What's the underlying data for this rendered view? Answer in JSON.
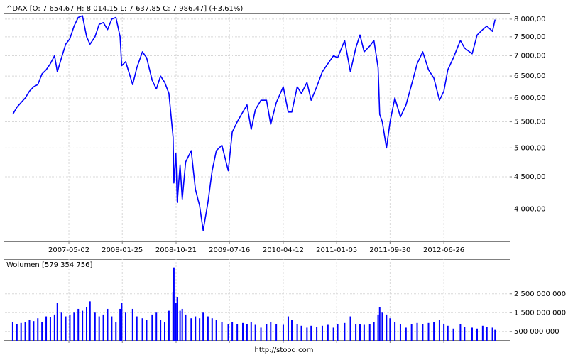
{
  "chart_data": [
    {
      "type": "line",
      "title": "^DAX [O: 7 654,67  H: 8 014,15  L: 7 637,85  C: 7 986,47] (+3,61%)",
      "x": [
        "2006-07-24",
        "2006-08-14",
        "2006-09-04",
        "2006-09-25",
        "2006-10-16",
        "2006-11-06",
        "2006-11-27",
        "2006-12-18",
        "2007-01-08",
        "2007-01-29",
        "2007-02-19",
        "2007-03-05",
        "2007-03-26",
        "2007-04-16",
        "2007-05-07",
        "2007-05-28",
        "2007-06-18",
        "2007-07-09",
        "2007-07-30",
        "2007-08-16",
        "2007-09-10",
        "2007-10-01",
        "2007-10-22",
        "2007-11-12",
        "2007-12-03",
        "2007-12-24",
        "2008-01-14",
        "2008-01-22",
        "2008-02-11",
        "2008-03-17",
        "2008-04-07",
        "2008-05-05",
        "2008-05-26",
        "2008-06-23",
        "2008-07-14",
        "2008-08-04",
        "2008-08-25",
        "2008-09-15",
        "2008-10-06",
        "2008-10-10",
        "2008-10-20",
        "2008-10-27",
        "2008-11-10",
        "2008-11-21",
        "2008-12-08",
        "2009-01-05",
        "2009-01-26",
        "2009-02-16",
        "2009-03-06",
        "2009-03-30",
        "2009-04-20",
        "2009-05-11",
        "2009-06-08",
        "2009-07-10",
        "2009-07-30",
        "2009-08-24",
        "2009-09-21",
        "2009-10-12",
        "2009-11-02",
        "2009-11-23",
        "2009-12-21",
        "2010-01-18",
        "2010-02-08",
        "2010-03-08",
        "2010-04-12",
        "2010-05-07",
        "2010-05-25",
        "2010-06-21",
        "2010-07-12",
        "2010-08-09",
        "2010-08-30",
        "2010-09-27",
        "2010-10-25",
        "2010-11-22",
        "2010-12-20",
        "2011-01-10",
        "2011-02-14",
        "2011-03-15",
        "2011-04-11",
        "2011-05-02",
        "2011-05-23",
        "2011-06-20",
        "2011-07-11",
        "2011-08-01",
        "2011-08-09",
        "2011-08-22",
        "2011-09-12",
        "2011-09-30",
        "2011-10-24",
        "2011-11-21",
        "2011-12-19",
        "2012-01-16",
        "2012-02-13",
        "2012-03-12",
        "2012-04-10",
        "2012-05-07",
        "2012-06-04",
        "2012-06-26",
        "2012-07-16",
        "2012-08-13",
        "2012-09-17",
        "2012-10-08",
        "2012-11-15",
        "2012-12-10",
        "2013-01-07",
        "2013-01-28",
        "2013-02-25",
        "2013-03-10"
      ],
      "series": [
        {
          "color": "#0000ff",
          "values": [
            5650,
            5800,
            5900,
            6000,
            6150,
            6250,
            6300,
            6550,
            6650,
            6800,
            7000,
            6600,
            6950,
            7300,
            7450,
            7800,
            8050,
            8100,
            7500,
            7300,
            7500,
            7850,
            7900,
            7700,
            8000,
            8050,
            7500,
            6750,
            6850,
            6300,
            6700,
            7100,
            6950,
            6400,
            6200,
            6500,
            6350,
            6100,
            5200,
            4400,
            4900,
            4100,
            4700,
            4150,
            4750,
            4950,
            4300,
            4050,
            3700,
            4100,
            4600,
            4950,
            5050,
            4600,
            5300,
            5500,
            5700,
            5850,
            5350,
            5750,
            5950,
            5950,
            5450,
            5900,
            6250,
            5700,
            5700,
            6250,
            6100,
            6350,
            5950,
            6250,
            6600,
            6800,
            7000,
            6950,
            7400,
            6600,
            7200,
            7550,
            7100,
            7250,
            7400,
            6700,
            5650,
            5500,
            5000,
            5500,
            6000,
            5600,
            5850,
            6300,
            6800,
            7100,
            6650,
            6450,
            5950,
            6150,
            6650,
            6950,
            7400,
            7200,
            7050,
            7550,
            7700,
            7800,
            7650,
            7986.47
          ]
        }
      ],
      "xlim": [
        "2006-06-08",
        "2013-05-23"
      ],
      "xticks": [
        "2007-05-02",
        "2008-01-25",
        "2008-10-21",
        "2009-07-16",
        "2010-04-12",
        "2011-01-05",
        "2011-09-30",
        "2012-06-26"
      ],
      "yscale": "log",
      "ylim": [
        3555,
        8145
      ],
      "yticks": [
        {
          "value": 4000,
          "label": "4 000,00"
        },
        {
          "value": 4500,
          "label": "4 500,00"
        },
        {
          "value": 5000,
          "label": "5 000,00"
        },
        {
          "value": 5500,
          "label": "5 500,00"
        },
        {
          "value": 6000,
          "label": "6 000,00"
        },
        {
          "value": 6500,
          "label": "6 500,00"
        },
        {
          "value": 7000,
          "label": "7 000,00"
        },
        {
          "value": 7500,
          "label": "7 500,00"
        },
        {
          "value": 8000,
          "label": "8 000,00"
        }
      ],
      "grid": true
    },
    {
      "type": "bar",
      "title": "Wolumen [579 354 756]",
      "color": "#0000ff",
      "x": [
        "2006-07-24",
        "2006-08-14",
        "2006-09-04",
        "2006-09-25",
        "2006-10-16",
        "2006-11-06",
        "2006-11-27",
        "2006-12-18",
        "2007-01-08",
        "2007-01-29",
        "2007-02-19",
        "2007-03-05",
        "2007-03-26",
        "2007-04-16",
        "2007-05-07",
        "2007-05-28",
        "2007-06-18",
        "2007-07-09",
        "2007-07-30",
        "2007-08-16",
        "2007-09-10",
        "2007-10-01",
        "2007-10-22",
        "2007-11-12",
        "2007-12-03",
        "2007-12-24",
        "2008-01-14",
        "2008-01-22",
        "2008-02-11",
        "2008-03-17",
        "2008-04-07",
        "2008-05-05",
        "2008-05-26",
        "2008-06-23",
        "2008-07-14",
        "2008-08-04",
        "2008-08-25",
        "2008-09-15",
        "2008-10-06",
        "2008-10-10",
        "2008-10-20",
        "2008-10-27",
        "2008-11-10",
        "2008-11-21",
        "2008-12-08",
        "2009-01-05",
        "2009-01-26",
        "2009-02-16",
        "2009-03-06",
        "2009-03-30",
        "2009-04-20",
        "2009-05-11",
        "2009-06-08",
        "2009-07-10",
        "2009-07-30",
        "2009-08-24",
        "2009-09-21",
        "2009-10-12",
        "2009-11-02",
        "2009-11-23",
        "2009-12-21",
        "2010-01-18",
        "2010-02-08",
        "2010-03-08",
        "2010-04-12",
        "2010-05-07",
        "2010-05-25",
        "2010-06-21",
        "2010-07-12",
        "2010-08-09",
        "2010-08-30",
        "2010-09-27",
        "2010-10-25",
        "2010-11-22",
        "2010-12-20",
        "2011-01-10",
        "2011-02-14",
        "2011-03-15",
        "2011-04-11",
        "2011-05-02",
        "2011-05-23",
        "2011-06-20",
        "2011-07-11",
        "2011-08-01",
        "2011-08-09",
        "2011-08-22",
        "2011-09-12",
        "2011-09-30",
        "2011-10-24",
        "2011-11-21",
        "2011-12-19",
        "2012-01-16",
        "2012-02-13",
        "2012-03-12",
        "2012-04-10",
        "2012-05-07",
        "2012-06-04",
        "2012-06-26",
        "2012-07-16",
        "2012-08-13",
        "2012-09-17",
        "2012-10-08",
        "2012-11-15",
        "2012-12-10",
        "2013-01-07",
        "2013-01-28",
        "2013-02-25",
        "2013-03-10"
      ],
      "values": [
        1000000000,
        900000000,
        950000000,
        1000000000,
        1100000000,
        1050000000,
        1200000000,
        1000000000,
        1300000000,
        1250000000,
        1400000000,
        2000000000,
        1500000000,
        1300000000,
        1400000000,
        1500000000,
        1700000000,
        1600000000,
        1800000000,
        2100000000,
        1500000000,
        1300000000,
        1400000000,
        1700000000,
        1300000000,
        1000000000,
        1700000000,
        2000000000,
        1500000000,
        1700000000,
        1300000000,
        1200000000,
        1100000000,
        1400000000,
        1500000000,
        1100000000,
        1000000000,
        1600000000,
        2600000000,
        3900000000,
        2000000000,
        2300000000,
        1600000000,
        1700000000,
        1400000000,
        1200000000,
        1300000000,
        1200000000,
        1500000000,
        1300000000,
        1200000000,
        1100000000,
        1000000000,
        900000000,
        1000000000,
        900000000,
        950000000,
        900000000,
        1000000000,
        850000000,
        700000000,
        900000000,
        1000000000,
        900000000,
        850000000,
        1300000000,
        1100000000,
        900000000,
        800000000,
        700000000,
        800000000,
        750000000,
        800000000,
        850000000,
        700000000,
        900000000,
        950000000,
        1300000000,
        900000000,
        900000000,
        850000000,
        900000000,
        1000000000,
        1400000000,
        1800000000,
        1500000000,
        1400000000,
        1200000000,
        1000000000,
        900000000,
        700000000,
        900000000,
        950000000,
        900000000,
        950000000,
        1000000000,
        1100000000,
        900000000,
        800000000,
        650000000,
        900000000,
        750000000,
        700000000,
        650000000,
        800000000,
        750000000,
        700000000,
        579354756
      ],
      "xlim": [
        "2006-06-08",
        "2013-05-23"
      ],
      "xticks": [
        "2007-05-02",
        "2008-01-25",
        "2008-10-21",
        "2009-07-16",
        "2010-04-12",
        "2011-01-05",
        "2011-09-30",
        "2012-06-26"
      ],
      "ylim": [
        0,
        4340000000
      ],
      "yticks": [
        {
          "value": 500000000,
          "label": "500 000 000"
        },
        {
          "value": 1500000000,
          "label": "1 500 000 000"
        },
        {
          "value": 2500000000,
          "label": "2 500 000 000"
        }
      ],
      "grid": true
    }
  ],
  "footer": "http://stooq.com"
}
